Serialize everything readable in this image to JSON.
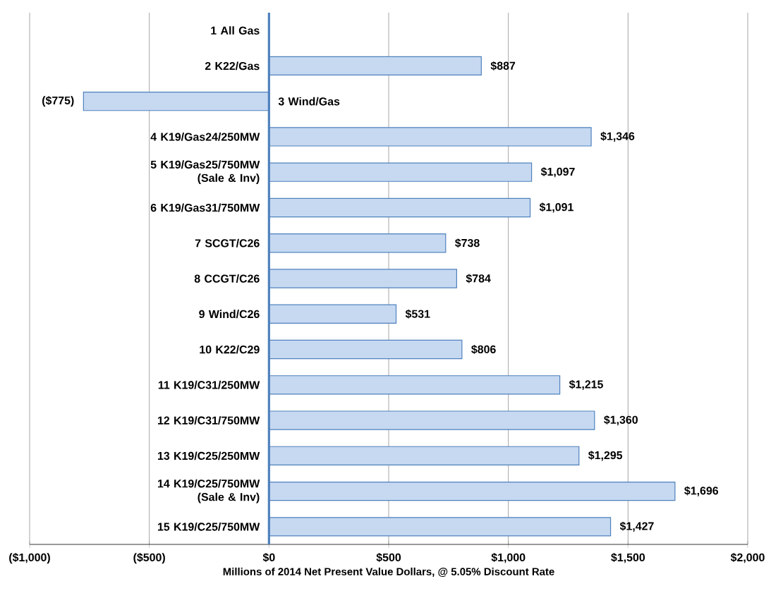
{
  "chart_data": {
    "type": "bar",
    "orientation": "horizontal",
    "xlabel": "Millions of 2014 Net Present Value Dollars, @ 5.05% Discount Rate",
    "categories": [
      "1 All Gas",
      "2 K22/Gas",
      "3 Wind/Gas",
      "4 K19/Gas24/250MW",
      "5 K19/Gas25/750MW (Sale & Inv)",
      "6 K19/Gas31/750MW",
      "7 SCGT/C26",
      "8 CCGT/C26",
      "9 Wind/C26",
      "10 K22/C29",
      "11 K19/C31/250MW",
      "12 K19/C31/750MW",
      "13 K19/C25/250MW",
      "14 K19/C25/750MW (Sale & Inv)",
      "15 K19/C25/750MW"
    ],
    "values": [
      0,
      887,
      -775,
      1346,
      1097,
      1091,
      738,
      784,
      531,
      806,
      1215,
      1360,
      1295,
      1696,
      1427
    ],
    "value_labels": [
      null,
      "$887",
      "($775)",
      "$1,346",
      "$1,097",
      "$1,091",
      "$738",
      "$784",
      "$531",
      "$806",
      "$1,215",
      "$1,360",
      "$1,295",
      "$1,696",
      "$1,427"
    ],
    "color": "#c6d9f1",
    "xlim": [
      -1000,
      2000
    ],
    "xticks": [
      {
        "value": -1000,
        "label": "($1,000)"
      },
      {
        "value": -500,
        "label": "($500)"
      },
      {
        "value": 0,
        "label": "$0"
      },
      {
        "value": 500,
        "label": "$500"
      },
      {
        "value": 1000,
        "label": "$1,000"
      },
      {
        "value": 1500,
        "label": "$1,500"
      },
      {
        "value": 2000,
        "label": "$2,000"
      }
    ],
    "grid": "x"
  }
}
